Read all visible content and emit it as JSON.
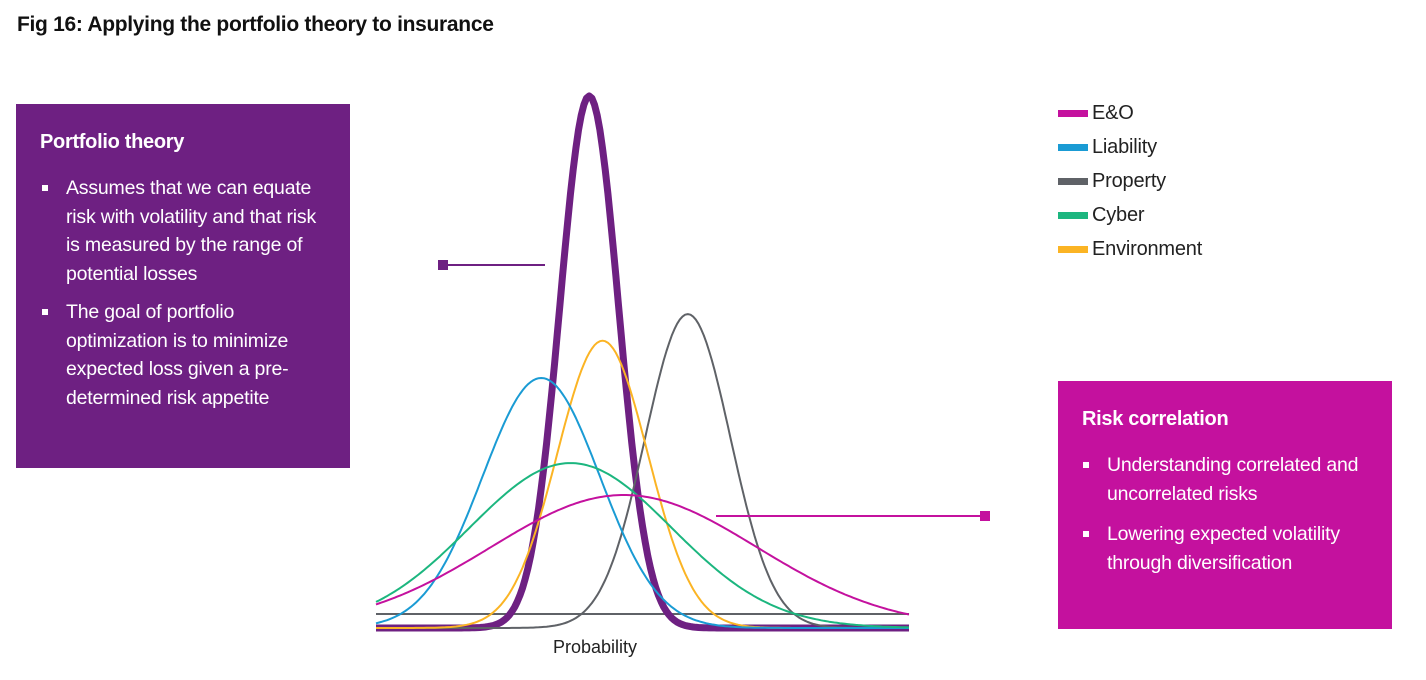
{
  "title": "Fig 16: Applying the portfolio theory to insurance",
  "portfolio_box": {
    "heading": "Portfolio theory",
    "bullets": [
      "Assumes that we can equate risk with volatility and that risk is measured by the range of potential losses",
      "The goal of portfolio optimization is to minimize expected loss given a pre-determined risk appetite"
    ],
    "color": "#6e2082"
  },
  "risk_box": {
    "heading": "Risk correlation",
    "bullets": [
      "Understanding correlated and uncorrelated risks",
      "Lowering expected volatility through diversification"
    ],
    "color": "#c4119e"
  },
  "legend": [
    {
      "label": "E&O",
      "color": "#c4119e"
    },
    {
      "label": "Liability",
      "color": "#1a9bd4"
    },
    {
      "label": "Property",
      "color": "#5f6267"
    },
    {
      "label": "Cyber",
      "color": "#1cb67f"
    },
    {
      "label": "Environment",
      "color": "#fbb424"
    }
  ],
  "chart_data": {
    "type": "line",
    "xlabel": "Probability",
    "ylabel": "",
    "series": [
      {
        "name": "Portfolio",
        "color": "#6e2082",
        "mean": 0.4,
        "sd": 0.055,
        "peak": 1.0,
        "width": "thick"
      },
      {
        "name": "Property",
        "color": "#5f6267",
        "mean": 0.585,
        "sd": 0.08,
        "peak": 0.59
      },
      {
        "name": "Environment",
        "color": "#fbb424",
        "mean": 0.425,
        "sd": 0.085,
        "peak": 0.54
      },
      {
        "name": "Liability",
        "color": "#1a9bd4",
        "mean": 0.31,
        "sd": 0.11,
        "peak": 0.47
      },
      {
        "name": "Cyber",
        "color": "#1cb67f",
        "mean": 0.365,
        "sd": 0.19,
        "peak": 0.31
      },
      {
        "name": "E&O",
        "color": "#c4119e",
        "mean": 0.465,
        "sd": 0.25,
        "peak": 0.25
      }
    ]
  }
}
